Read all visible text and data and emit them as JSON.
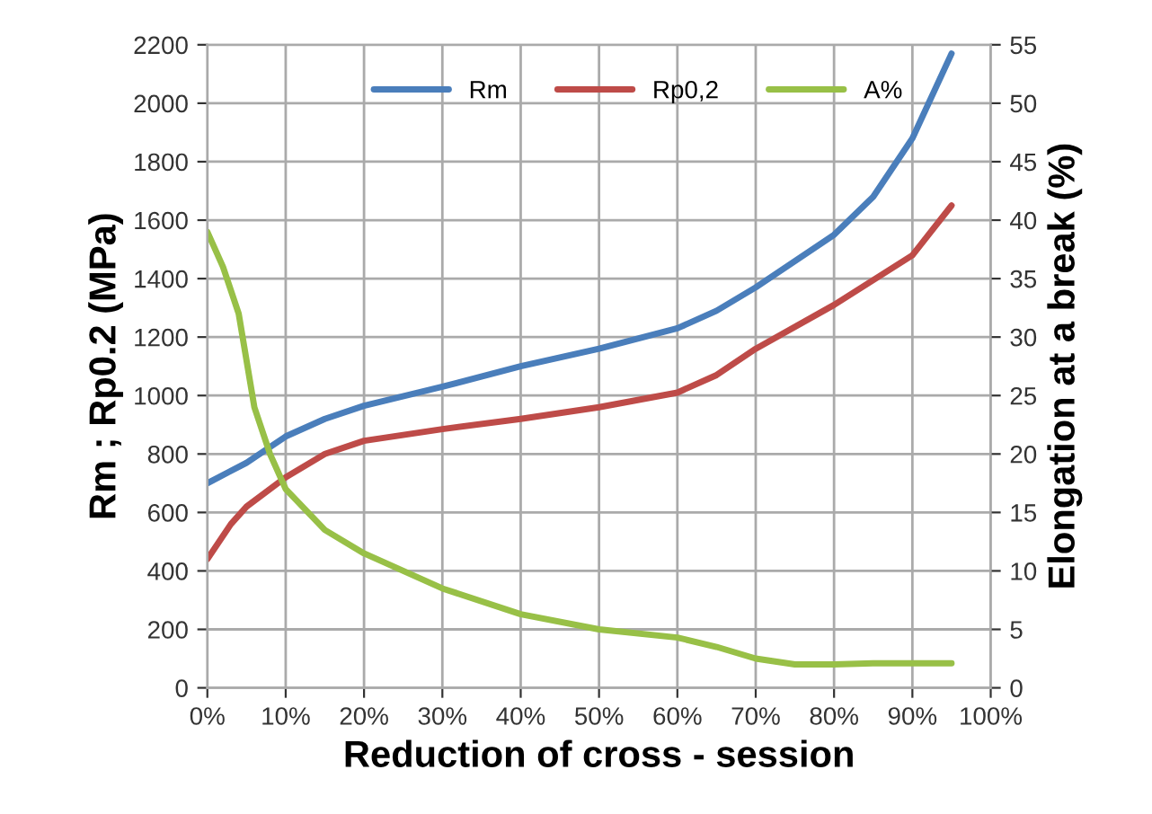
{
  "chart_data": {
    "type": "line",
    "xlabel": "Reduction of cross - session",
    "ylabel": "Rm ; Rp0.2 (MPa)",
    "y2label": "Elongation at a break (%)",
    "xlim": [
      0,
      100
    ],
    "xticks": [
      {
        "value": 0,
        "label": "0%"
      },
      {
        "value": 10,
        "label": "10%"
      },
      {
        "value": 20,
        "label": "20%"
      },
      {
        "value": 30,
        "label": "30%"
      },
      {
        "value": 40,
        "label": "40%"
      },
      {
        "value": 50,
        "label": "50%"
      },
      {
        "value": 60,
        "label": "60%"
      },
      {
        "value": 70,
        "label": "70%"
      },
      {
        "value": 80,
        "label": "80%"
      },
      {
        "value": 90,
        "label": "90%"
      },
      {
        "value": 100,
        "label": "100%"
      }
    ],
    "ylim": [
      0,
      2200
    ],
    "yticks": [
      0,
      200,
      400,
      600,
      800,
      1000,
      1200,
      1400,
      1600,
      1800,
      2000,
      2200
    ],
    "y2lim": [
      0,
      55
    ],
    "y2ticks": [
      0,
      5,
      10,
      15,
      20,
      25,
      30,
      35,
      40,
      45,
      50,
      55
    ],
    "grid": true,
    "legend": "top",
    "marker": "none",
    "line_style": "solid",
    "series": [
      {
        "name": "Rm",
        "color": "#4a7ebb",
        "x": [
          0,
          5,
          10,
          15,
          20,
          30,
          40,
          50,
          60,
          65,
          70,
          80,
          85,
          90,
          95
        ],
        "values": [
          700,
          770,
          860,
          920,
          965,
          1030,
          1100,
          1160,
          1230,
          1290,
          1370,
          1550,
          1680,
          1880,
          2170
        ]
      },
      {
        "name": "Rp0,2",
        "color": "#be4b48",
        "x": [
          0,
          3,
          5,
          10,
          15,
          20,
          30,
          40,
          50,
          60,
          65,
          70,
          80,
          90,
          95
        ],
        "values": [
          440,
          560,
          620,
          720,
          800,
          845,
          885,
          920,
          960,
          1010,
          1070,
          1160,
          1310,
          1480,
          1650
        ]
      },
      {
        "name": "A%",
        "color": "#98c047",
        "axis": "y2",
        "x": [
          0,
          2,
          4,
          6,
          8,
          10,
          15,
          20,
          30,
          40,
          50,
          60,
          65,
          70,
          75,
          80,
          85,
          90,
          95
        ],
        "values": [
          39,
          36,
          32,
          24,
          20,
          17,
          13.5,
          11.5,
          8.5,
          6.3,
          5,
          4.3,
          3.5,
          2.5,
          2,
          2,
          2.1,
          2.1,
          2.1
        ]
      }
    ]
  }
}
